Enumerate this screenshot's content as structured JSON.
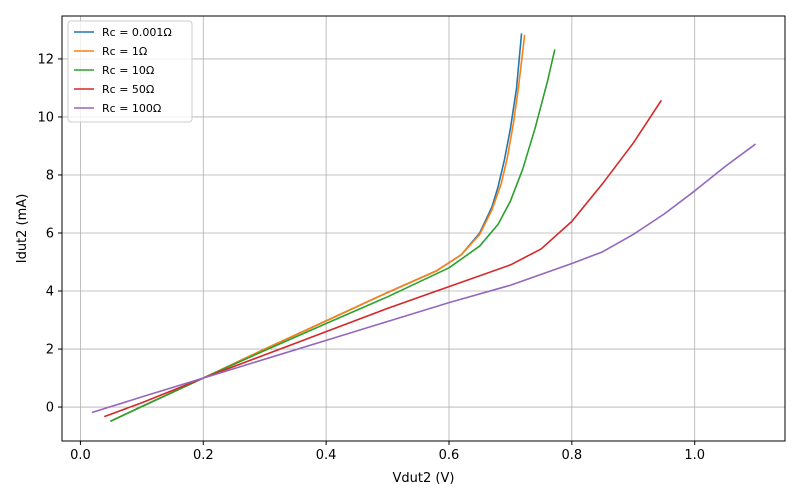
{
  "chart_data": {
    "type": "line",
    "title": "",
    "xlabel": "Vdut2 (V)",
    "ylabel": "Idut2 (mA)",
    "xlim": [
      -0.03,
      1.147
    ],
    "ylim": [
      -1.17,
      13.48
    ],
    "xticks": [
      0.0,
      0.2,
      0.4,
      0.6,
      0.8,
      1.0
    ],
    "xtick_labels": [
      "0.0",
      "0.2",
      "0.4",
      "0.6",
      "0.8",
      "1.0"
    ],
    "yticks": [
      0,
      2,
      4,
      6,
      8,
      10,
      12
    ],
    "ytick_labels": [
      "0",
      "2",
      "4",
      "6",
      "8",
      "10",
      "12"
    ],
    "grid": true,
    "legend_position": "upper-left",
    "series": [
      {
        "name": "Rc = 0.001Ω",
        "color": "#1f77b4",
        "points": [
          [
            0.05,
            -0.48
          ],
          [
            0.1,
            0.02
          ],
          [
            0.2,
            1.0
          ],
          [
            0.3,
            2.0
          ],
          [
            0.4,
            2.97
          ],
          [
            0.5,
            3.95
          ],
          [
            0.58,
            4.7
          ],
          [
            0.62,
            5.25
          ],
          [
            0.65,
            6.0
          ],
          [
            0.67,
            6.9
          ],
          [
            0.68,
            7.6
          ],
          [
            0.69,
            8.5
          ],
          [
            0.7,
            9.6
          ],
          [
            0.71,
            11.0
          ],
          [
            0.718,
            12.85
          ]
        ]
      },
      {
        "name": "Rc = 1Ω",
        "color": "#ff7f0e",
        "points": [
          [
            0.05,
            -0.48
          ],
          [
            0.1,
            0.02
          ],
          [
            0.2,
            1.0
          ],
          [
            0.3,
            2.0
          ],
          [
            0.4,
            2.97
          ],
          [
            0.5,
            3.95
          ],
          [
            0.58,
            4.7
          ],
          [
            0.62,
            5.25
          ],
          [
            0.65,
            5.95
          ],
          [
            0.67,
            6.8
          ],
          [
            0.685,
            7.7
          ],
          [
            0.695,
            8.6
          ],
          [
            0.705,
            9.8
          ],
          [
            0.713,
            11.0
          ],
          [
            0.723,
            12.8
          ]
        ]
      },
      {
        "name": "Rc = 10Ω",
        "color": "#2ca02c",
        "points": [
          [
            0.05,
            -0.48
          ],
          [
            0.1,
            0.02
          ],
          [
            0.2,
            1.0
          ],
          [
            0.3,
            1.95
          ],
          [
            0.4,
            2.88
          ],
          [
            0.5,
            3.8
          ],
          [
            0.6,
            4.8
          ],
          [
            0.65,
            5.55
          ],
          [
            0.68,
            6.3
          ],
          [
            0.7,
            7.1
          ],
          [
            0.72,
            8.2
          ],
          [
            0.74,
            9.6
          ],
          [
            0.76,
            11.2
          ],
          [
            0.772,
            12.3
          ]
        ]
      },
      {
        "name": "Rc = 50Ω",
        "color": "#d62728",
        "points": [
          [
            0.04,
            -0.32
          ],
          [
            0.1,
            0.15
          ],
          [
            0.2,
            1.0
          ],
          [
            0.3,
            1.8
          ],
          [
            0.4,
            2.6
          ],
          [
            0.5,
            3.4
          ],
          [
            0.6,
            4.15
          ],
          [
            0.7,
            4.9
          ],
          [
            0.75,
            5.45
          ],
          [
            0.8,
            6.4
          ],
          [
            0.85,
            7.7
          ],
          [
            0.9,
            9.1
          ],
          [
            0.945,
            10.55
          ]
        ]
      },
      {
        "name": "Rc = 100Ω",
        "color": "#9467bd",
        "points": [
          [
            0.02,
            -0.18
          ],
          [
            0.1,
            0.35
          ],
          [
            0.2,
            1.0
          ],
          [
            0.3,
            1.65
          ],
          [
            0.4,
            2.3
          ],
          [
            0.5,
            2.95
          ],
          [
            0.6,
            3.6
          ],
          [
            0.7,
            4.2
          ],
          [
            0.8,
            4.95
          ],
          [
            0.85,
            5.35
          ],
          [
            0.9,
            5.95
          ],
          [
            0.95,
            6.65
          ],
          [
            1.0,
            7.45
          ],
          [
            1.05,
            8.3
          ],
          [
            1.098,
            9.05
          ]
        ]
      }
    ]
  }
}
